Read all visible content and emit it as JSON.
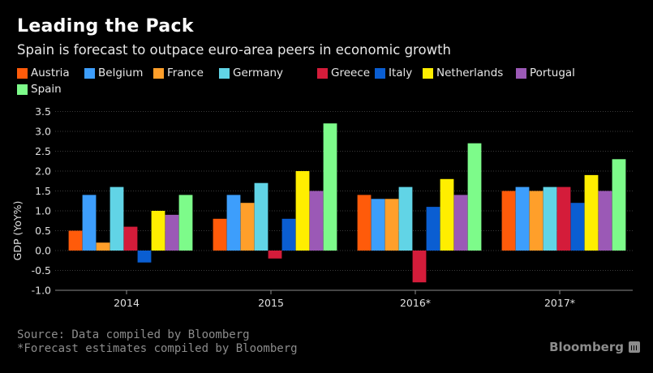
{
  "header": {
    "title": "Leading the Pack",
    "subtitle": "Spain is forecast to outpace euro-area peers in economic growth"
  },
  "footer": {
    "source": "Source: Data compiled by Bloomberg",
    "note": "*Forecast estimates compiled by Bloomberg",
    "brand": "Bloomberg",
    "brand_icon": "bloomberg-chart-icon"
  },
  "chart_data": {
    "type": "bar",
    "title": "Leading the Pack",
    "subtitle": "Spain is forecast to outpace euro-area peers in economic growth",
    "xlabel": "",
    "ylabel": "GDP (YoY%)",
    "ylim": [
      -1.0,
      3.5
    ],
    "yticks": [
      "3.5",
      "3.0",
      "2.5",
      "2.0",
      "1.5",
      "1.0",
      "0.5",
      "0.0",
      "-0.5",
      "-1.0"
    ],
    "ytick_values": [
      3.5,
      3.0,
      2.5,
      2.0,
      1.5,
      1.0,
      0.5,
      0.0,
      -0.5,
      -1.0
    ],
    "grid": true,
    "legend_position": "top-left",
    "categories": [
      "2014",
      "2015",
      "2016*",
      "2017*"
    ],
    "series": [
      {
        "name": "Austria",
        "color": "#ff5b0a",
        "values": [
          0.5,
          0.8,
          1.4,
          1.5
        ]
      },
      {
        "name": "Belgium",
        "color": "#3d9efc",
        "values": [
          1.4,
          1.4,
          1.3,
          1.6
        ]
      },
      {
        "name": "France",
        "color": "#ff9f2a",
        "values": [
          0.2,
          1.2,
          1.3,
          1.5
        ]
      },
      {
        "name": "Germany",
        "color": "#61d4e6",
        "values": [
          1.6,
          1.7,
          1.6,
          1.6
        ]
      },
      {
        "name": "Greece",
        "color": "#d41c3a",
        "values": [
          0.6,
          -0.2,
          -0.8,
          1.6
        ]
      },
      {
        "name": "Italy",
        "color": "#0a5ed2",
        "values": [
          -0.3,
          0.8,
          1.1,
          1.2
        ]
      },
      {
        "name": "Netherlands",
        "color": "#ffee00",
        "values": [
          1.0,
          2.0,
          1.8,
          1.9
        ]
      },
      {
        "name": "Portugal",
        "color": "#9b59b6",
        "values": [
          0.9,
          1.5,
          1.4,
          1.5
        ]
      },
      {
        "name": "Spain",
        "color": "#7dfb8a",
        "values": [
          1.4,
          3.2,
          2.7,
          2.3
        ]
      }
    ]
  }
}
